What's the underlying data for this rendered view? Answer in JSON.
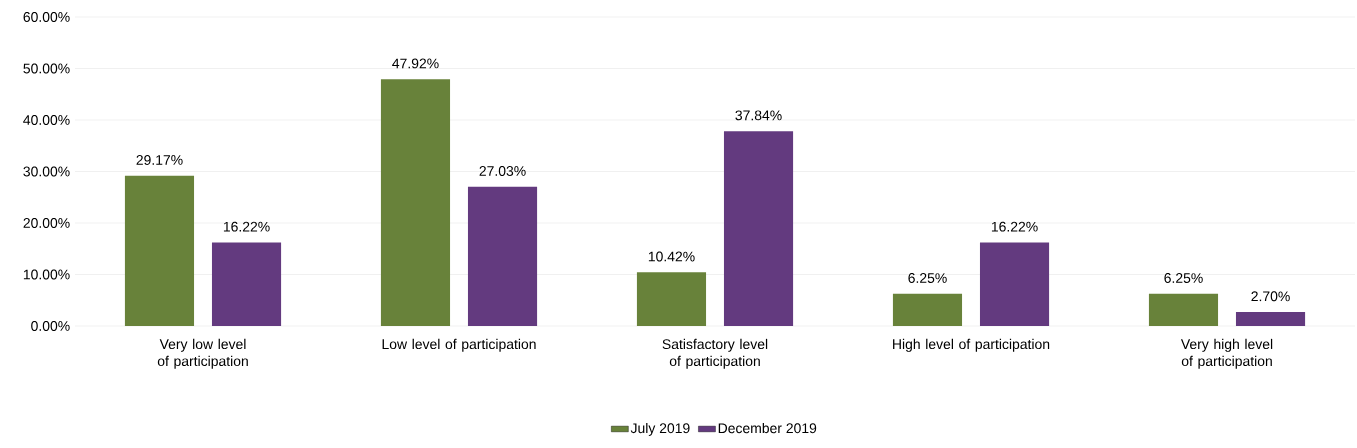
{
  "chart_data": {
    "type": "bar",
    "categories": [
      "Very low level of participation",
      "Low level of participation",
      "Satisfactory level of participation",
      "High level of participation",
      "Very high level of participation"
    ],
    "series": [
      {
        "name": "July 2019",
        "color": "#68823a",
        "values": [
          29.17,
          47.92,
          10.42,
          6.25,
          6.25
        ],
        "value_labels": [
          "29.17%",
          "47.92%",
          "10.42%",
          "6.25%",
          "6.25%"
        ]
      },
      {
        "name": "December 2019",
        "color": "#633a7f",
        "values": [
          16.22,
          27.03,
          37.84,
          16.22,
          2.7
        ],
        "value_labels": [
          "16.22%",
          "27.03%",
          "37.84%",
          "16.22%",
          "2.70%"
        ]
      }
    ],
    "ylim": [
      0,
      60
    ],
    "yticks": [
      {
        "value": 0,
        "label": "0.00%"
      },
      {
        "value": 10,
        "label": "10.00%"
      },
      {
        "value": 20,
        "label": "20.00%"
      },
      {
        "value": 30,
        "label": "30.00%"
      },
      {
        "value": 40,
        "label": "40.00%"
      },
      {
        "value": 50,
        "label": "50.00%"
      },
      {
        "value": 60,
        "label": "60.00%"
      }
    ],
    "grid": "y",
    "legend": "bottom"
  }
}
